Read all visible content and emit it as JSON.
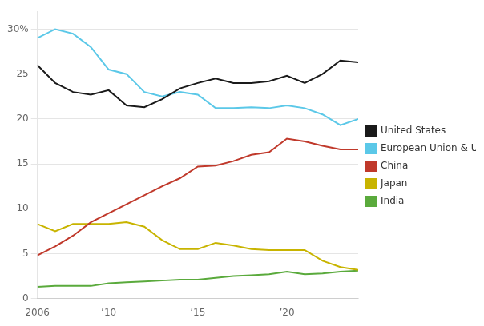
{
  "chart_data": {
    "type": "line",
    "x": [
      2006,
      2007,
      2008,
      2009,
      2010,
      2011,
      2012,
      2013,
      2014,
      2015,
      2016,
      2017,
      2018,
      2019,
      2020,
      2021,
      2022,
      2023,
      2024
    ],
    "series": [
      {
        "name": "United States",
        "color": "#1a1a1a",
        "values": [
          26.0,
          24.0,
          23.0,
          22.7,
          23.2,
          21.5,
          21.3,
          22.2,
          23.4,
          24.0,
          24.5,
          24.0,
          24.0,
          24.2,
          24.8,
          24.0,
          25.0,
          26.5,
          26.3
        ]
      },
      {
        "name": "European Union & U.K.",
        "color": "#5bc8e8",
        "values": [
          29.0,
          30.0,
          29.5,
          28.0,
          25.5,
          25.0,
          23.0,
          22.5,
          23.0,
          22.7,
          21.2,
          21.2,
          21.3,
          21.2,
          21.5,
          21.2,
          20.5,
          19.3,
          20.0
        ]
      },
      {
        "name": "China",
        "color": "#c0392b",
        "values": [
          4.8,
          5.8,
          7.0,
          8.5,
          9.5,
          10.5,
          11.5,
          12.5,
          13.4,
          14.7,
          14.8,
          15.3,
          16.0,
          16.3,
          17.8,
          17.5,
          17.0,
          16.6,
          16.6
        ]
      },
      {
        "name": "Japan",
        "color": "#c8b400",
        "values": [
          8.3,
          7.5,
          8.3,
          8.3,
          8.3,
          8.5,
          8.0,
          6.5,
          5.5,
          5.5,
          6.2,
          5.9,
          5.5,
          5.4,
          5.4,
          5.4,
          4.2,
          3.5,
          3.2
        ]
      },
      {
        "name": "India",
        "color": "#5aaa3c",
        "values": [
          1.3,
          1.4,
          1.4,
          1.4,
          1.7,
          1.8,
          1.9,
          2.0,
          2.1,
          2.1,
          2.3,
          2.5,
          2.6,
          2.7,
          3.0,
          2.7,
          2.8,
          3.0,
          3.1
        ]
      }
    ],
    "xlim": [
      2006,
      2024
    ],
    "xticks": [
      2006,
      {
        "value": 2010,
        "label": "’10"
      },
      {
        "value": 2015,
        "label": "’15"
      },
      {
        "value": 2020,
        "label": "’20"
      }
    ],
    "ylim": [
      0,
      32
    ],
    "yticks": [
      0,
      5,
      10,
      15,
      20,
      25,
      {
        "value": 30,
        "label": "30%"
      }
    ],
    "grid": "y",
    "legend": "right"
  }
}
